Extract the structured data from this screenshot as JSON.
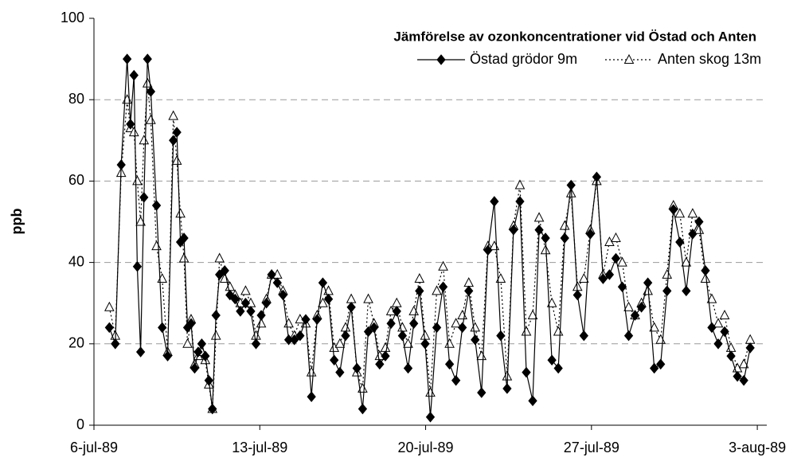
{
  "chart_data": {
    "type": "line",
    "title": "Jämförelse av ozonkoncentrationer vid Östad och Anten",
    "y_label": "ppb",
    "x": [
      0.65,
      0.9,
      1.15,
      1.4,
      1.54,
      1.69,
      1.83,
      1.97,
      2.11,
      2.26,
      2.4,
      2.64,
      2.88,
      3.11,
      3.35,
      3.5,
      3.65,
      3.8,
      3.95,
      4.1,
      4.25,
      4.4,
      4.55,
      4.7,
      4.85,
      5.0,
      5.15,
      5.3,
      5.52,
      5.74,
      5.96,
      6.18,
      6.4,
      6.62,
      6.84,
      7.06,
      7.28,
      7.5,
      7.74,
      7.98,
      8.22,
      8.46,
      8.7,
      8.94,
      9.18,
      9.42,
      9.66,
      9.9,
      10.14,
      10.38,
      10.62,
      10.86,
      11.1,
      11.34,
      11.58,
      11.82,
      12.06,
      12.3,
      12.54,
      12.78,
      13.02,
      13.26,
      13.5,
      13.74,
      13.98,
      14.2,
      14.47,
      14.74,
      15.01,
      15.28,
      15.55,
      15.82,
      16.09,
      16.36,
      16.63,
      16.9,
      17.17,
      17.44,
      17.71,
      17.98,
      18.25,
      18.52,
      18.79,
      19.06,
      19.33,
      19.6,
      19.87,
      20.14,
      20.41,
      20.68,
      20.95,
      21.22,
      21.49,
      21.76,
      22.03,
      22.3,
      22.57,
      22.84,
      23.11,
      23.38,
      23.65,
      23.92,
      24.19,
      24.46,
      24.73,
      25.0,
      25.27,
      25.54,
      25.81,
      26.08,
      26.35,
      26.62,
      26.89,
      27.16,
      27.43,
      27.7
    ],
    "series": [
      {
        "name": "Östad grödor 9m",
        "color": "#000000",
        "line": "solid",
        "marker": "diamond",
        "values": [
          24,
          20,
          64,
          90,
          74,
          86,
          39,
          18,
          56,
          90,
          82,
          54,
          24,
          17,
          70,
          72,
          45,
          46,
          24,
          25,
          14,
          18,
          20,
          17,
          11,
          4,
          27,
          37,
          38,
          32,
          31,
          28,
          30,
          28,
          20,
          27,
          30,
          37,
          35,
          32,
          21,
          21,
          22,
          26,
          7,
          26,
          35,
          31,
          16,
          13,
          22,
          29,
          14,
          4,
          23,
          24,
          15,
          17,
          25,
          28,
          22,
          14,
          25,
          33,
          20,
          2,
          24,
          34,
          15,
          11,
          24,
          33,
          21,
          8,
          43,
          55,
          22,
          9,
          48,
          55,
          13,
          6,
          48,
          46,
          16,
          14,
          46,
          59,
          32,
          22,
          47,
          61,
          36,
          37,
          41,
          34,
          22,
          27,
          29,
          35,
          14,
          15,
          33,
          53,
          45,
          33,
          47,
          50,
          38,
          24,
          20,
          23,
          17,
          12,
          11,
          19
        ]
      },
      {
        "name": "Anten skog 13m",
        "color": "#000000",
        "line": "dotted",
        "marker": "triangle-open",
        "values": [
          29,
          22,
          62,
          80,
          73,
          72,
          60,
          50,
          70,
          84,
          75,
          44,
          36,
          18,
          76,
          65,
          52,
          41,
          20,
          26,
          15,
          17,
          18,
          16,
          10,
          4,
          22,
          41,
          36,
          34,
          32,
          30,
          33,
          30,
          22,
          25,
          31,
          37,
          37,
          33,
          25,
          22,
          26,
          25,
          13,
          27,
          30,
          33,
          19,
          20,
          24,
          31,
          13,
          9,
          31,
          25,
          17,
          19,
          28,
          30,
          24,
          20,
          28,
          36,
          22,
          8,
          33,
          39,
          20,
          25,
          27,
          35,
          24,
          17,
          44,
          44,
          36,
          12,
          49,
          59,
          23,
          27,
          51,
          43,
          30,
          23,
          49,
          57,
          34,
          36,
          48,
          60,
          37,
          45,
          46,
          40,
          29,
          27,
          30,
          33,
          24,
          21,
          37,
          54,
          52,
          40,
          52,
          48,
          36,
          31,
          25,
          27,
          19,
          14,
          15,
          21
        ]
      }
    ],
    "xlim": [
      0,
      28.4
    ],
    "xticks": [
      {
        "value": 0,
        "label": "6-jul-89"
      },
      {
        "value": 7,
        "label": "13-jul-89"
      },
      {
        "value": 14,
        "label": "20-jul-89"
      },
      {
        "value": 21,
        "label": "27-jul-89"
      },
      {
        "value": 28,
        "label": "3-aug-89"
      }
    ],
    "ylim": [
      0,
      100
    ],
    "yticks": [
      0,
      20,
      40,
      60,
      80,
      100
    ],
    "grid": true,
    "legend": "upper-right"
  }
}
